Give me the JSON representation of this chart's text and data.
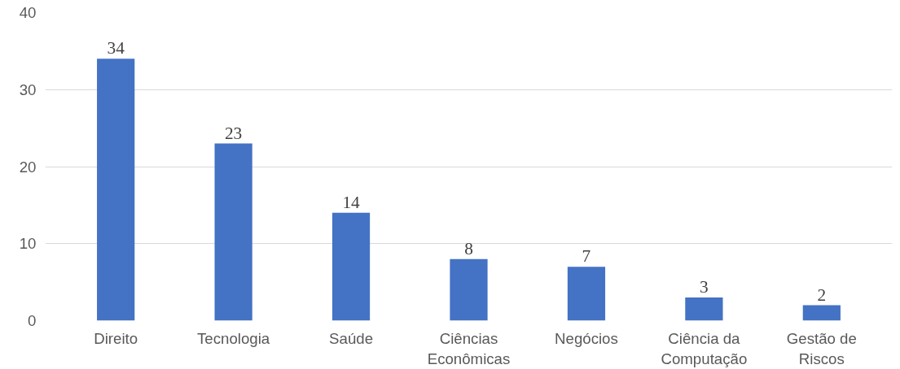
{
  "chart_data": {
    "type": "bar",
    "categories": [
      "Direito",
      "Tecnologia",
      "Saúde",
      "Ciências Econômicas",
      "Negócios",
      "Ciência da Computação",
      "Gestão de Riscos"
    ],
    "values": [
      34,
      23,
      14,
      8,
      7,
      3,
      2
    ],
    "color": "#4472c4",
    "ylim": [
      0,
      40
    ],
    "yticks": [
      0,
      10,
      20,
      30,
      40
    ],
    "grid": "y",
    "data_labels": true
  }
}
